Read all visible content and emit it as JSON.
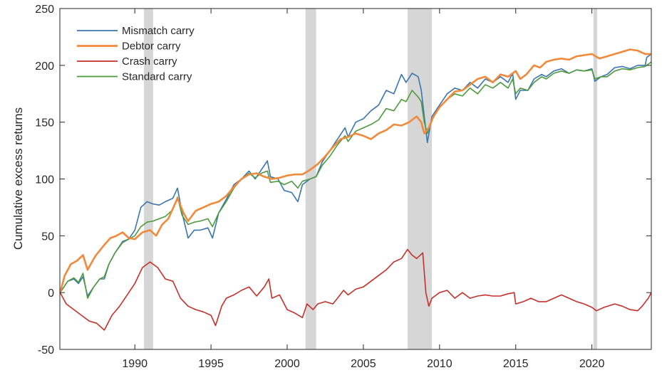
{
  "chart_data": {
    "type": "line",
    "title": "",
    "xlabel": "",
    "ylabel": "Cumulative excess returns",
    "xlim": [
      1985.08,
      2023.9
    ],
    "ylim": [
      -50,
      250
    ],
    "xticks": [
      1990,
      1995,
      2000,
      2005,
      2010,
      2015,
      2020
    ],
    "xtick_labels": [
      "1990",
      "1995",
      "2000",
      "2005",
      "2010",
      "2015",
      "2020"
    ],
    "yticks": [
      -50,
      0,
      50,
      100,
      150,
      200,
      250
    ],
    "ytick_labels": [
      "-50",
      "0",
      "50",
      "100",
      "150",
      "200",
      "250"
    ],
    "grid": false,
    "legend_position": "top-left",
    "shaded_periods": [
      {
        "start": 1990.6,
        "end": 1991.2
      },
      {
        "start": 2001.2,
        "end": 2001.9
      },
      {
        "start": 2007.9,
        "end": 2009.5
      },
      {
        "start": 2020.1,
        "end": 2020.35
      }
    ],
    "shade_color": "#d6d6d6",
    "series": [
      {
        "name": "Mismatch carry",
        "color": "#3a75b0",
        "x": [
          1985.1,
          1985.6,
          1986.0,
          1986.3,
          1986.6,
          1986.9,
          1987.3,
          1987.7,
          1988.0,
          1988.3,
          1988.7,
          1989.2,
          1989.6,
          1990.0,
          1990.4,
          1990.8,
          1991.2,
          1991.6,
          1992.0,
          1992.5,
          1992.8,
          1993.1,
          1993.5,
          1993.9,
          1994.3,
          1994.8,
          1995.1,
          1995.5,
          1996.0,
          1996.5,
          1997.0,
          1997.5,
          1997.9,
          1998.3,
          1998.7,
          1998.9,
          1999.4,
          1999.8,
          2000.3,
          2000.7,
          2001.0,
          2001.5,
          2001.9,
          2002.3,
          2002.8,
          2003.3,
          2003.8,
          2004.0,
          2004.5,
          2005.0,
          2005.5,
          2006.0,
          2006.5,
          2007.0,
          2007.5,
          2007.8,
          2008.2,
          2008.6,
          2008.8,
          2009.0,
          2009.2,
          2009.5,
          2010.0,
          2010.5,
          2011.0,
          2011.5,
          2012.0,
          2012.5,
          2013.0,
          2013.5,
          2014.0,
          2014.5,
          2014.8,
          2015.0,
          2015.3,
          2015.8,
          2016.2,
          2016.7,
          2017.0,
          2017.5,
          2018.0,
          2018.5,
          2019.0,
          2019.5,
          2020.0,
          2020.2,
          2020.6,
          2021.0,
          2021.5,
          2022.0,
          2022.5,
          2023.0,
          2023.5,
          2023.6,
          2023.9
        ],
        "values": [
          0,
          10,
          12,
          8,
          14,
          -3,
          5,
          12,
          12,
          25,
          35,
          45,
          47,
          55,
          75,
          80,
          78,
          77,
          80,
          83,
          92,
          70,
          48,
          55,
          55,
          57,
          48,
          70,
          82,
          95,
          100,
          107,
          100,
          108,
          116,
          102,
          100,
          90,
          88,
          80,
          95,
          100,
          102,
          115,
          125,
          135,
          145,
          137,
          150,
          153,
          160,
          165,
          178,
          175,
          192,
          185,
          193,
          190,
          178,
          155,
          132,
          155,
          165,
          175,
          180,
          178,
          185,
          180,
          188,
          185,
          190,
          185,
          193,
          170,
          178,
          178,
          188,
          192,
          190,
          195,
          197,
          193,
          196,
          195,
          197,
          186,
          190,
          192,
          198,
          199,
          197,
          200,
          200,
          207,
          210
        ]
      },
      {
        "name": "Debtor carry",
        "color": "#f0893a",
        "x": [
          1985.1,
          1985.4,
          1985.8,
          1986.2,
          1986.6,
          1986.9,
          1987.4,
          1988.0,
          1988.4,
          1988.8,
          1989.2,
          1989.6,
          1990.0,
          1990.5,
          1991.0,
          1991.4,
          1991.8,
          1992.2,
          1992.8,
          1993.2,
          1993.5,
          1994.0,
          1994.5,
          1995.0,
          1995.5,
          1996.0,
          1996.5,
          1997.0,
          1997.5,
          1998.0,
          1998.5,
          1999.0,
          1999.5,
          2000.0,
          2000.5,
          2001.0,
          2001.5,
          2002.0,
          2002.5,
          2003.0,
          2003.5,
          2004.0,
          2004.5,
          2005.0,
          2005.5,
          2006.0,
          2006.5,
          2007.0,
          2007.5,
          2008.0,
          2008.5,
          2008.8,
          2009.0,
          2009.3,
          2009.6,
          2010.0,
          2010.5,
          2011.0,
          2011.5,
          2012.0,
          2012.5,
          2013.0,
          2013.5,
          2014.0,
          2014.5,
          2015.0,
          2015.3,
          2015.7,
          2016.2,
          2016.6,
          2017.0,
          2017.5,
          2018.0,
          2018.5,
          2019.0,
          2019.5,
          2020.0,
          2020.5,
          2021.0,
          2021.5,
          2022.0,
          2022.5,
          2023.0,
          2023.5,
          2023.9
        ],
        "values": [
          0,
          15,
          25,
          28,
          33,
          20,
          32,
          42,
          48,
          50,
          53,
          48,
          47,
          53,
          55,
          50,
          60,
          65,
          83,
          70,
          63,
          72,
          75,
          78,
          80,
          85,
          93,
          100,
          104,
          105,
          102,
          100,
          101,
          103,
          104,
          104,
          108,
          113,
          120,
          128,
          135,
          137,
          140,
          138,
          135,
          140,
          143,
          148,
          147,
          150,
          155,
          150,
          140,
          145,
          155,
          163,
          170,
          177,
          178,
          183,
          188,
          190,
          185,
          192,
          190,
          195,
          188,
          192,
          200,
          198,
          203,
          205,
          206,
          205,
          208,
          209,
          210,
          206,
          208,
          210,
          212,
          214,
          213,
          210,
          210
        ]
      },
      {
        "name": "Crash carry",
        "color": "#c4302b",
        "x": [
          1985.1,
          1985.5,
          1986.0,
          1986.5,
          1987.0,
          1987.5,
          1988.0,
          1988.5,
          1989.0,
          1989.5,
          1990.0,
          1990.5,
          1991.0,
          1991.5,
          1992.0,
          1992.5,
          1993.0,
          1993.5,
          1994.0,
          1994.5,
          1995.0,
          1995.3,
          1995.7,
          1996.0,
          1996.5,
          1997.0,
          1997.5,
          1998.0,
          1998.5,
          1998.8,
          1999.0,
          1999.5,
          2000.0,
          2000.5,
          2001.0,
          2001.3,
          2001.7,
          2002.0,
          2002.5,
          2003.0,
          2003.3,
          2003.7,
          2004.0,
          2004.5,
          2005.0,
          2005.5,
          2006.0,
          2006.5,
          2007.0,
          2007.5,
          2007.9,
          2008.2,
          2008.5,
          2008.9,
          2009.1,
          2009.3,
          2009.5,
          2010.0,
          2010.5,
          2011.0,
          2011.5,
          2012.0,
          2012.5,
          2013.0,
          2013.5,
          2014.0,
          2014.5,
          2014.9,
          2015.0,
          2015.5,
          2016.0,
          2016.5,
          2017.0,
          2017.5,
          2018.0,
          2018.5,
          2019.0,
          2019.5,
          2020.0,
          2020.3,
          2020.8,
          2021.5,
          2022.0,
          2022.5,
          2023.0,
          2023.3,
          2023.7,
          2023.9
        ],
        "values": [
          0,
          -10,
          -15,
          -20,
          -25,
          -27,
          -33,
          -20,
          -12,
          -2,
          8,
          22,
          27,
          22,
          12,
          10,
          -5,
          -12,
          -15,
          -17,
          -20,
          -29,
          -12,
          -5,
          -2,
          2,
          5,
          -3,
          5,
          12,
          -5,
          -2,
          -15,
          -18,
          -22,
          -10,
          -15,
          -10,
          -8,
          -10,
          -5,
          2,
          -2,
          3,
          5,
          10,
          15,
          20,
          27,
          30,
          38,
          33,
          30,
          35,
          0,
          -12,
          -5,
          0,
          2,
          -5,
          0,
          -5,
          -3,
          -2,
          -3,
          -3,
          -1,
          0,
          -10,
          -8,
          -5,
          -8,
          -8,
          -5,
          -2,
          -5,
          -8,
          -10,
          -13,
          -16,
          -13,
          -10,
          -12,
          -15,
          -16,
          -12,
          -5,
          0
        ]
      },
      {
        "name": "Standard carry",
        "color": "#4e9a3c",
        "x": [
          1985.1,
          1985.6,
          1986.0,
          1986.3,
          1986.6,
          1986.9,
          1987.3,
          1987.7,
          1988.0,
          1988.3,
          1988.7,
          1989.2,
          1989.6,
          1990.0,
          1990.4,
          1990.8,
          1991.2,
          1991.6,
          1992.0,
          1992.5,
          1992.8,
          1993.1,
          1993.5,
          1993.9,
          1994.3,
          1994.8,
          1995.1,
          1995.5,
          1996.0,
          1996.5,
          1997.0,
          1997.5,
          1997.9,
          1998.3,
          1998.7,
          1998.9,
          1999.4,
          1999.8,
          2000.3,
          2000.7,
          2001.0,
          2001.5,
          2001.9,
          2002.3,
          2002.8,
          2003.3,
          2003.8,
          2004.0,
          2004.5,
          2005.0,
          2005.5,
          2006.0,
          2006.5,
          2007.0,
          2007.5,
          2007.8,
          2008.2,
          2008.6,
          2008.8,
          2009.0,
          2009.2,
          2009.5,
          2010.0,
          2010.5,
          2011.0,
          2011.5,
          2012.0,
          2012.5,
          2013.0,
          2013.5,
          2014.0,
          2014.5,
          2014.8,
          2015.0,
          2015.3,
          2015.8,
          2016.2,
          2016.7,
          2017.0,
          2017.5,
          2018.0,
          2018.5,
          2019.0,
          2019.5,
          2020.0,
          2020.2,
          2020.6,
          2021.0,
          2021.5,
          2022.0,
          2022.5,
          2023.0,
          2023.5,
          2023.9
        ],
        "values": [
          0,
          10,
          13,
          9,
          17,
          -5,
          5,
          12,
          14,
          25,
          35,
          44,
          47,
          50,
          58,
          62,
          63,
          65,
          67,
          73,
          84,
          68,
          60,
          62,
          63,
          65,
          58,
          70,
          80,
          92,
          100,
          105,
          101,
          105,
          107,
          97,
          98,
          95,
          98,
          92,
          98,
          100,
          102,
          112,
          120,
          130,
          138,
          133,
          142,
          145,
          148,
          152,
          162,
          160,
          170,
          168,
          178,
          172,
          168,
          150,
          140,
          152,
          163,
          170,
          175,
          173,
          180,
          175,
          183,
          180,
          185,
          180,
          188,
          175,
          180,
          178,
          185,
          190,
          188,
          193,
          195,
          193,
          196,
          195,
          196,
          188,
          190,
          190,
          195,
          197,
          196,
          198,
          199,
          203
        ]
      }
    ]
  }
}
